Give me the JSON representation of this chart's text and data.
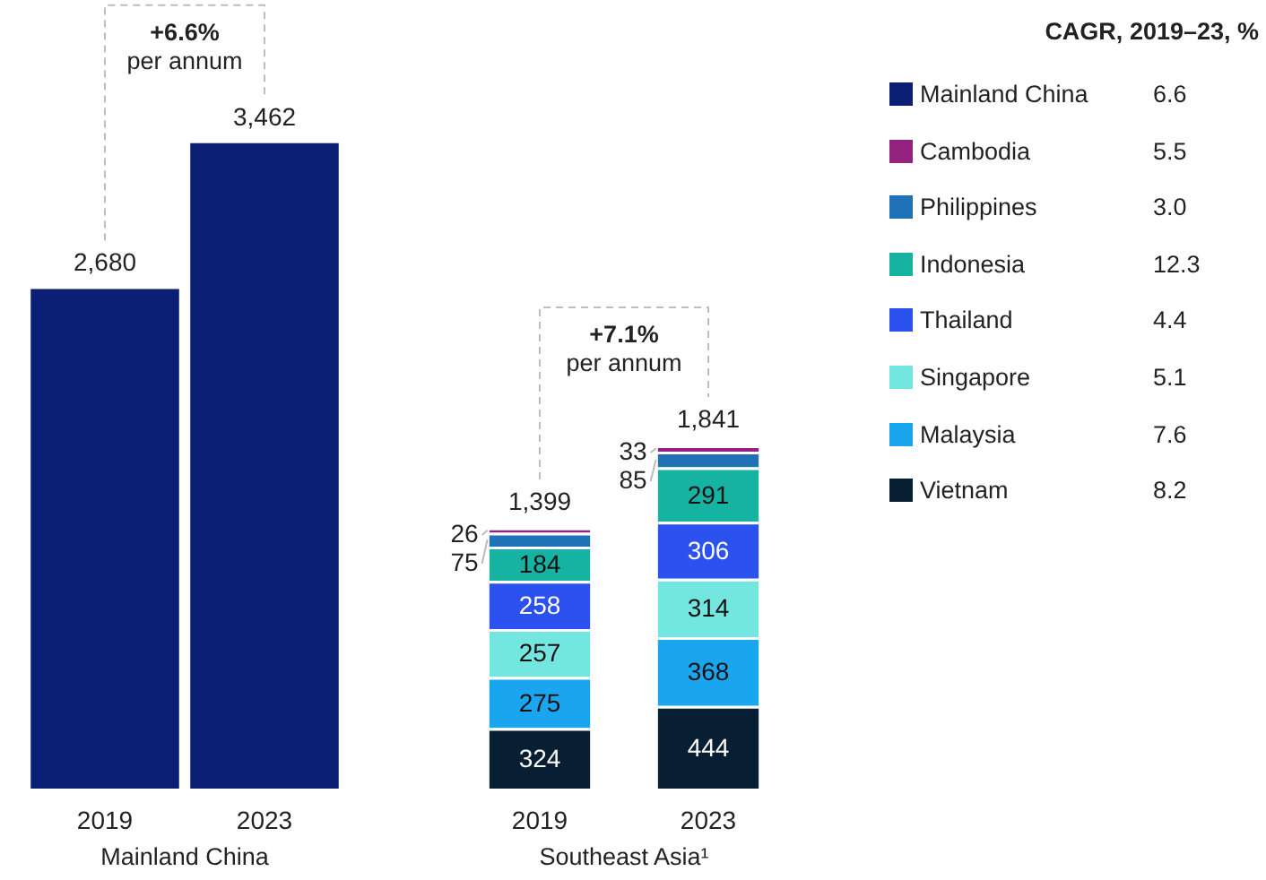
{
  "chart_data": [
    {
      "type": "bar",
      "categories": [
        "2019",
        "2023"
      ],
      "values": [
        2680,
        3462
      ],
      "color": "#0b1f74",
      "value_labels": [
        "2,680",
        "3,462"
      ],
      "xlabel": "Mainland China",
      "annotations": [
        "+6.6%",
        "per annum"
      ]
    },
    {
      "type": "bar",
      "stacked": true,
      "categories": [
        "2019",
        "2023"
      ],
      "xlabel": "Southeast Asia¹",
      "data_labels": true,
      "totals": [
        "1,399",
        "1,841"
      ],
      "annotations": [
        "+7.1%",
        "per annum"
      ],
      "series": [
        {
          "color": "#071e33",
          "values": [
            324,
            444
          ]
        },
        {
          "color": "#1aa6ee",
          "values": [
            275,
            368
          ]
        },
        {
          "color": "#74e6e0",
          "values": [
            257,
            314
          ]
        },
        {
          "color": "#2b52ee",
          "values": [
            258,
            306
          ]
        },
        {
          "color": "#16b3a3",
          "values": [
            184,
            291
          ]
        },
        {
          "color": "#1f72b8",
          "values": [
            75,
            85
          ]
        },
        {
          "color": "#93237f",
          "values": [
            26,
            33
          ]
        }
      ]
    },
    {
      "type": "other",
      "title": "CAGR, 2019–23, %",
      "categories": [
        "Mainland China",
        "Cambodia",
        "Philippines",
        "Indonesia",
        "Thailand",
        "Singapore",
        "Malaysia",
        "Vietnam"
      ],
      "values": [
        6.6,
        5.5,
        3.0,
        12.3,
        4.4,
        5.1,
        7.6,
        8.2
      ],
      "value_labels": [
        "6.6",
        "5.5",
        "3.0",
        "12.3",
        "4.4",
        "5.1",
        "7.6",
        "8.2"
      ],
      "colors": [
        "#0b1f74",
        "#93237f",
        "#1f72b8",
        "#16b3a3",
        "#2b52ee",
        "#74e6e0",
        "#1aa6ee",
        "#071e33"
      ]
    }
  ]
}
